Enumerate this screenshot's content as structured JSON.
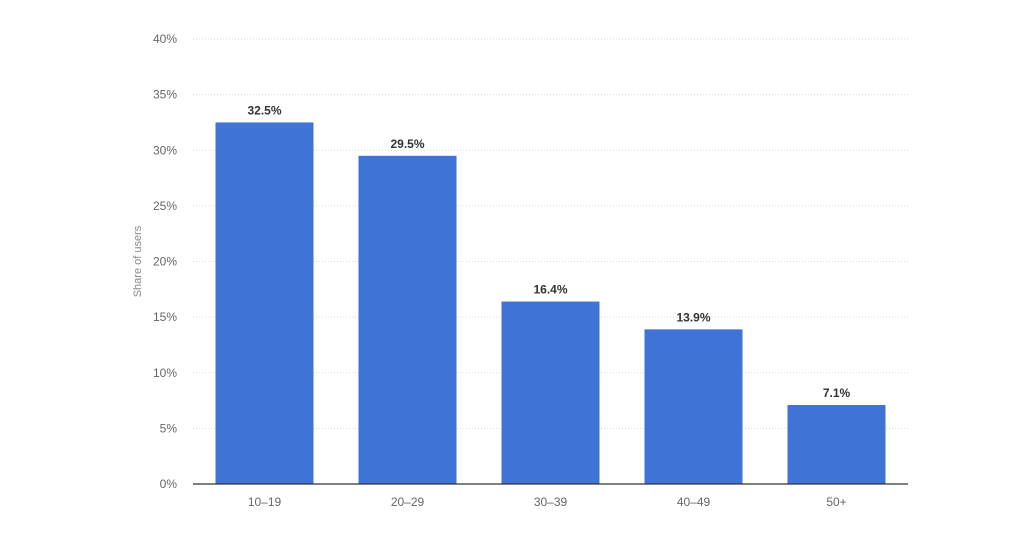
{
  "chart_data": {
    "type": "bar",
    "categories": [
      "10-19",
      "20-29",
      "30-39",
      "40-49",
      "50+"
    ],
    "values": [
      32.5,
      29.5,
      16.4,
      13.9,
      7.1
    ],
    "data_labels": [
      "32.5%",
      "29.5%",
      "16.4%",
      "13.9%",
      "7.1%"
    ],
    "title": "",
    "xlabel": "",
    "ylabel": "Share of users",
    "ylim": [
      0,
      40
    ],
    "y_ticks": [
      0,
      5,
      10,
      15,
      20,
      25,
      30,
      35,
      40
    ],
    "y_tick_labels": [
      "0%",
      "5%",
      "10%",
      "15%",
      "20%",
      "25%",
      "30%",
      "35%",
      "40%"
    ],
    "grid": true,
    "legend": "none",
    "bar_color": "#3f74d6"
  }
}
